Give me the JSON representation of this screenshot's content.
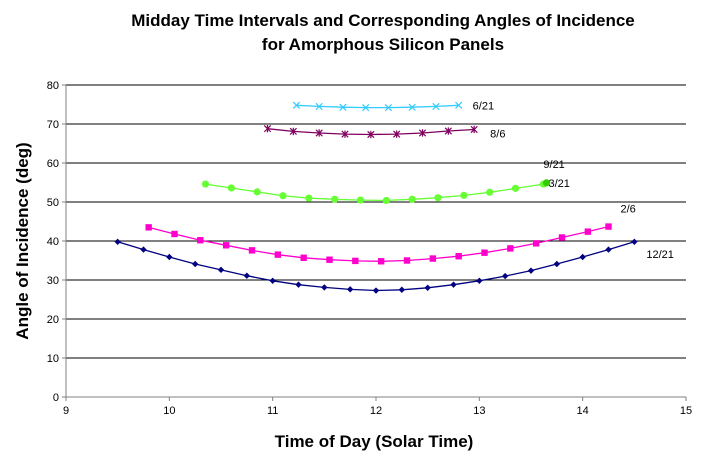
{
  "chart_data": {
    "type": "scatter",
    "title_line1": "Midday Time Intervals and Corresponding Angles of Incidence",
    "title_line2": "for Amorphous Silicon Panels",
    "xlabel": "Time of Day (Solar Time)",
    "ylabel": "Angle of Incidence (deg)",
    "xlim": [
      9,
      15
    ],
    "ylim": [
      0,
      80
    ],
    "xticks": [
      9,
      10,
      11,
      12,
      13,
      14,
      15
    ],
    "yticks": [
      0,
      10,
      20,
      30,
      40,
      50,
      60,
      70,
      80
    ],
    "grid": "horizontal",
    "series": [
      {
        "name": "6/21",
        "color": "#33CCFF",
        "marker": "x",
        "x": [
          11.23,
          11.45,
          11.68,
          11.9,
          12.12,
          12.35,
          12.58,
          12.8
        ],
        "y": [
          74.8,
          74.5,
          74.3,
          74.2,
          74.2,
          74.3,
          74.5,
          74.8
        ]
      },
      {
        "name": "8/6",
        "color": "#800060",
        "marker": "star",
        "x": [
          10.95,
          11.2,
          11.45,
          11.7,
          11.95,
          12.2,
          12.45,
          12.7,
          12.95
        ],
        "y": [
          68.8,
          68.1,
          67.7,
          67.4,
          67.3,
          67.4,
          67.7,
          68.2,
          68.6
        ]
      },
      {
        "name": "9/21",
        "color": "#66FF33",
        "marker": "circle",
        "x": [
          10.35,
          10.6,
          10.85,
          11.1,
          11.35,
          11.6,
          11.85,
          12.1,
          12.35,
          12.6,
          12.85,
          13.1,
          13.35,
          13.62
        ],
        "y": [
          54.6,
          53.6,
          52.6,
          51.6,
          51.0,
          50.7,
          50.5,
          50.4,
          50.7,
          51.1,
          51.7,
          52.5,
          53.5,
          54.6
        ]
      },
      {
        "name": "3/21",
        "color": "#33CC00",
        "marker": "circle",
        "x": [
          13.65
        ],
        "y": [
          54.9
        ]
      },
      {
        "name": "2/6",
        "color": "#FF00CC",
        "marker": "square",
        "x": [
          9.8,
          10.05,
          10.3,
          10.55,
          10.8,
          11.05,
          11.3,
          11.55,
          11.8,
          12.05,
          12.3,
          12.55,
          12.8,
          13.05,
          13.3,
          13.55,
          13.8,
          14.05,
          14.25
        ],
        "y": [
          43.5,
          41.8,
          40.2,
          38.9,
          37.6,
          36.5,
          35.7,
          35.2,
          34.9,
          34.8,
          35.0,
          35.5,
          36.1,
          37.0,
          38.1,
          39.4,
          40.9,
          42.4,
          43.7
        ]
      },
      {
        "name": "12/21",
        "color": "#000080",
        "marker": "diamond",
        "x": [
          9.5,
          9.75,
          10.0,
          10.25,
          10.5,
          10.75,
          11.0,
          11.25,
          11.5,
          11.75,
          12.0,
          12.25,
          12.5,
          12.75,
          13.0,
          13.25,
          13.5,
          13.75,
          14.0,
          14.25,
          14.5
        ],
        "y": [
          39.8,
          37.8,
          35.9,
          34.1,
          32.6,
          31.1,
          29.8,
          28.8,
          28.1,
          27.6,
          27.3,
          27.5,
          28.0,
          28.8,
          29.8,
          31.0,
          32.4,
          34.1,
          35.9,
          37.8,
          39.8
        ]
      }
    ]
  }
}
